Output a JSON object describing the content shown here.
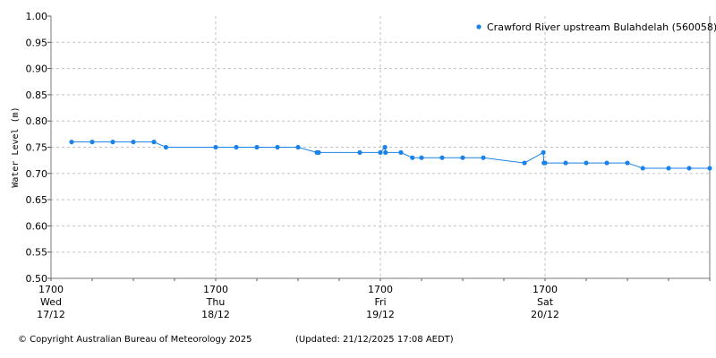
{
  "chart_data": {
    "type": "line",
    "ylabel": "Water Level (m)",
    "ylim": [
      0.5,
      1.0
    ],
    "yticks": [
      "0.50",
      "0.55",
      "0.60",
      "0.65",
      "0.70",
      "0.75",
      "0.80",
      "0.85",
      "0.90",
      "0.95",
      "1.00"
    ],
    "xlim": [
      "2025-12-17T17:00",
      "2025-12-21T17:00"
    ],
    "xticks": [
      {
        "time": "2025-12-17T17:00",
        "label": [
          "1700",
          "Wed",
          "17/12"
        ]
      },
      {
        "time": "2025-12-18T17:00",
        "label": [
          "1700",
          "Thu",
          "18/12"
        ]
      },
      {
        "time": "2025-12-19T17:00",
        "label": [
          "1700",
          "Fri",
          "19/12"
        ]
      },
      {
        "time": "2025-12-20T17:00",
        "label": [
          "1700",
          "Sat",
          "20/12"
        ]
      }
    ],
    "grid": true,
    "legend_placement": "top-right",
    "color": "#1a82e8",
    "series": [
      {
        "name": "Crawford River upstream Bulahdelah (560058)",
        "points": [
          [
            "2025-12-17T20:00",
            0.76
          ],
          [
            "2025-12-17T23:00",
            0.76
          ],
          [
            "2025-12-18T02:00",
            0.76
          ],
          [
            "2025-12-18T05:00",
            0.76
          ],
          [
            "2025-12-18T08:00",
            0.76
          ],
          [
            "2025-12-18T09:45",
            0.75
          ],
          [
            "2025-12-18T17:00",
            0.75
          ],
          [
            "2025-12-18T20:00",
            0.75
          ],
          [
            "2025-12-18T23:00",
            0.75
          ],
          [
            "2025-12-19T02:00",
            0.75
          ],
          [
            "2025-12-19T05:00",
            0.75
          ],
          [
            "2025-12-19T07:45",
            0.74
          ],
          [
            "2025-12-19T08:00",
            0.74
          ],
          [
            "2025-12-19T14:00",
            0.74
          ],
          [
            "2025-12-19T17:00",
            0.74
          ],
          [
            "2025-12-19T17:40",
            0.75
          ],
          [
            "2025-12-19T17:45",
            0.74
          ],
          [
            "2025-12-19T20:00",
            0.74
          ],
          [
            "2025-12-19T21:40",
            0.73
          ],
          [
            "2025-12-19T23:00",
            0.73
          ],
          [
            "2025-12-20T02:00",
            0.73
          ],
          [
            "2025-12-20T05:00",
            0.73
          ],
          [
            "2025-12-20T08:00",
            0.73
          ],
          [
            "2025-12-20T14:00",
            0.72
          ],
          [
            "2025-12-20T16:45",
            0.74
          ],
          [
            "2025-12-20T16:50",
            0.72
          ],
          [
            "2025-12-20T17:00",
            0.72
          ],
          [
            "2025-12-20T20:00",
            0.72
          ],
          [
            "2025-12-20T23:00",
            0.72
          ],
          [
            "2025-12-21T02:00",
            0.72
          ],
          [
            "2025-12-21T05:00",
            0.72
          ],
          [
            "2025-12-21T07:15",
            0.71
          ],
          [
            "2025-12-21T11:00",
            0.71
          ],
          [
            "2025-12-21T14:00",
            0.71
          ],
          [
            "2025-12-21T17:00",
            0.71
          ]
        ]
      }
    ]
  },
  "footer": {
    "copyright": "© Copyright Australian Bureau of Meteorology 2025",
    "updated": "(Updated: 21/12/2025 17:08 AEDT)"
  }
}
